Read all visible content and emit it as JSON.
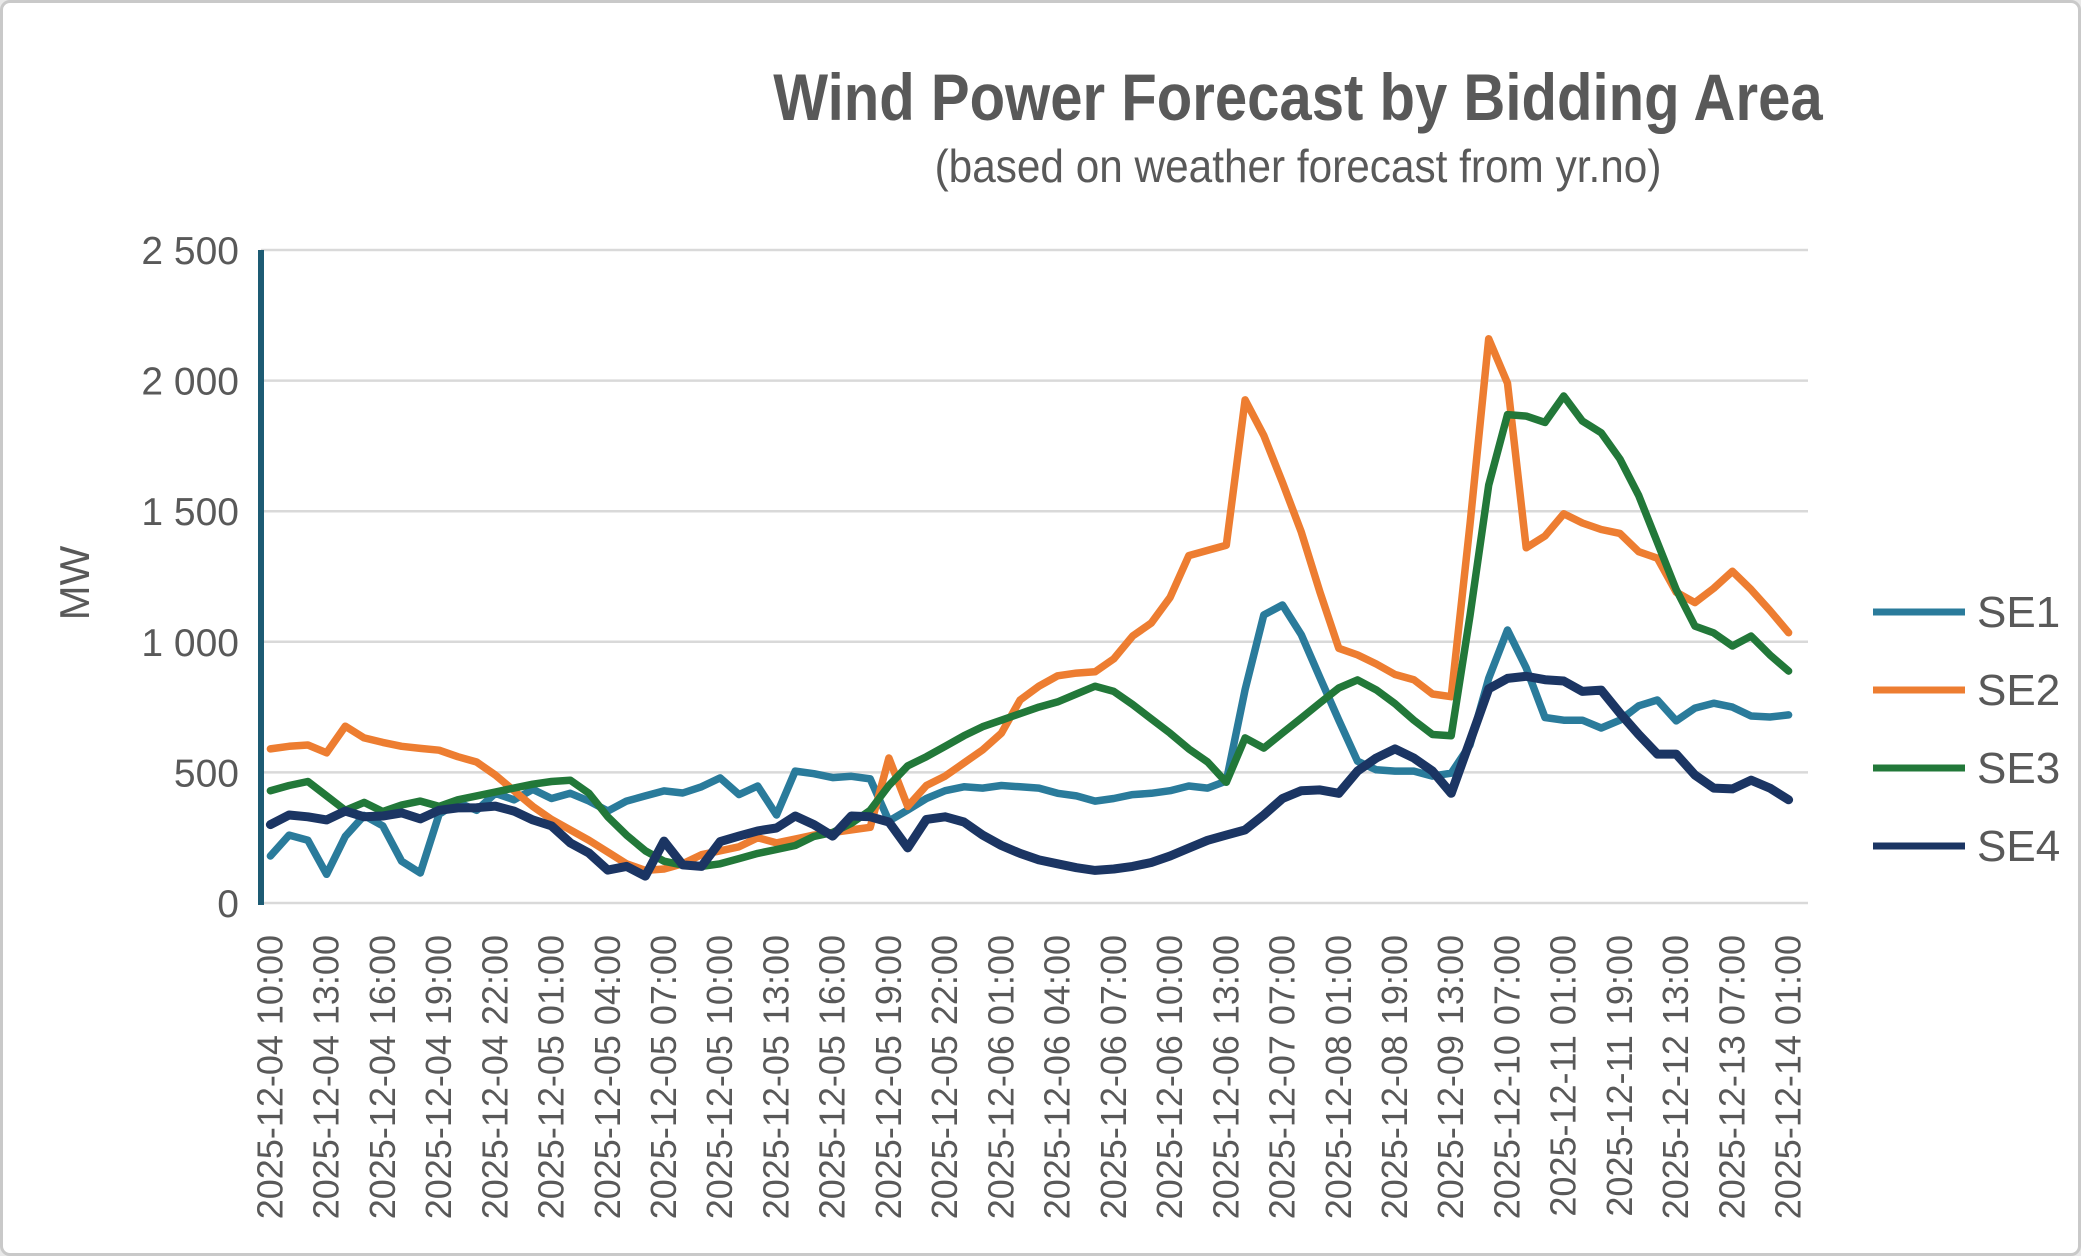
{
  "window": {
    "background": "#ffffff",
    "border_color": "#c9c9c9"
  },
  "chart_data": {
    "type": "line",
    "title": "Wind Power Forecast by Bidding Area",
    "subtitle": "(based on weather forecast from yr.no)",
    "ylabel": "MW",
    "xlabel": "",
    "ylim": [
      0,
      2500
    ],
    "ytick_step": 500,
    "ytick_labels": [
      "0",
      "500",
      "1 000",
      "1 500",
      "2 000",
      "2 500"
    ],
    "grid": true,
    "grid_color": "#d9d9d9",
    "axis_line_color": "#1d5b73",
    "text_color": "#595959",
    "legend_position": "right",
    "xtick_every": 3,
    "x": [
      "2025-12-04 10:00",
      "2025-12-04 11:00",
      "2025-12-04 12:00",
      "2025-12-04 13:00",
      "2025-12-04 14:00",
      "2025-12-04 15:00",
      "2025-12-04 16:00",
      "2025-12-04 17:00",
      "2025-12-04 18:00",
      "2025-12-04 19:00",
      "2025-12-04 20:00",
      "2025-12-04 21:00",
      "2025-12-04 22:00",
      "2025-12-04 23:00",
      "2025-12-05 00:00",
      "2025-12-05 01:00",
      "2025-12-05 02:00",
      "2025-12-05 03:00",
      "2025-12-05 04:00",
      "2025-12-05 05:00",
      "2025-12-05 06:00",
      "2025-12-05 07:00",
      "2025-12-05 08:00",
      "2025-12-05 09:00",
      "2025-12-05 10:00",
      "2025-12-05 11:00",
      "2025-12-05 12:00",
      "2025-12-05 13:00",
      "2025-12-05 14:00",
      "2025-12-05 15:00",
      "2025-12-05 16:00",
      "2025-12-05 17:00",
      "2025-12-05 18:00",
      "2025-12-05 19:00",
      "2025-12-05 20:00",
      "2025-12-05 21:00",
      "2025-12-05 22:00",
      "2025-12-05 23:00",
      "2025-12-06 00:00",
      "2025-12-06 01:00",
      "2025-12-06 02:00",
      "2025-12-06 03:00",
      "2025-12-06 04:00",
      "2025-12-06 05:00",
      "2025-12-06 06:00",
      "2025-12-06 07:00",
      "2025-12-06 08:00",
      "2025-12-06 09:00",
      "2025-12-06 10:00",
      "2025-12-06 11:00",
      "2025-12-06 12:00",
      "2025-12-06 13:00",
      "2025-12-06 19:00",
      "2025-12-07 01:00",
      "2025-12-07 07:00",
      "2025-12-07 13:00",
      "2025-12-07 19:00",
      "2025-12-08 01:00",
      "2025-12-08 07:00",
      "2025-12-08 13:00",
      "2025-12-08 19:00",
      "2025-12-09 01:00",
      "2025-12-09 07:00",
      "2025-12-09 13:00",
      "2025-12-09 19:00",
      "2025-12-10 01:00",
      "2025-12-10 07:00",
      "2025-12-10 13:00",
      "2025-12-10 19:00",
      "2025-12-11 01:00",
      "2025-12-11 07:00",
      "2025-12-11 13:00",
      "2025-12-11 19:00",
      "2025-12-12 01:00",
      "2025-12-12 07:00",
      "2025-12-12 13:00",
      "2025-12-12 19:00",
      "2025-12-13 01:00",
      "2025-12-13 07:00",
      "2025-12-13 13:00",
      "2025-12-13 19:00",
      "2025-12-14 01:00"
    ],
    "series": [
      {
        "name": "SE1",
        "color": "#2a7b9b",
        "values": [
          180,
          260,
          240,
          110,
          255,
          335,
          295,
          160,
          115,
          340,
          385,
          355,
          420,
          395,
          435,
          400,
          420,
          390,
          352,
          390,
          410,
          429,
          421,
          445,
          479,
          415,
          448,
          337,
          505,
          495,
          480,
          485,
          475,
          314,
          356,
          400,
          430,
          445,
          440,
          450,
          445,
          440,
          420,
          410,
          390,
          400,
          415,
          420,
          430,
          448,
          440,
          467,
          817,
          1103,
          1141,
          1027,
          862,
          700,
          543,
          510,
          505,
          505,
          486,
          497,
          605,
          860,
          1045,
          900,
          710,
          700,
          700,
          670,
          700,
          755,
          777,
          697,
          746,
          765,
          750,
          716,
          712,
          720
        ]
      },
      {
        "name": "SE2",
        "color": "#ed7d31",
        "values": [
          590,
          600,
          605,
          575,
          677,
          632,
          615,
          600,
          592,
          585,
          560,
          540,
          490,
          430,
          370,
          320,
          280,
          240,
          195,
          150,
          125,
          130,
          150,
          185,
          200,
          215,
          250,
          230,
          245,
          260,
          270,
          280,
          290,
          555,
          370,
          450,
          486,
          536,
          586,
          650,
          777,
          830,
          870,
          880,
          885,
          935,
          1022,
          1072,
          1170,
          1330,
          1350,
          1370,
          1926,
          1790,
          1610,
          1420,
          1190,
          975,
          950,
          915,
          875,
          855,
          800,
          790,
          1450,
          2160,
          1990,
          1360,
          1405,
          1490,
          1455,
          1430,
          1415,
          1345,
          1320,
          1190,
          1150,
          1205,
          1270,
          1200,
          1120,
          1035
        ]
      },
      {
        "name": "SE3",
        "color": "#227839",
        "values": [
          430,
          450,
          465,
          410,
          355,
          385,
          350,
          375,
          390,
          370,
          395,
          410,
          425,
          440,
          455,
          465,
          470,
          420,
          330,
          260,
          200,
          160,
          145,
          140,
          150,
          170,
          190,
          205,
          220,
          255,
          270,
          305,
          355,
          450,
          525,
          560,
          600,
          640,
          675,
          700,
          725,
          750,
          770,
          800,
          830,
          810,
          760,
          705,
          650,
          590,
          540,
          462,
          632,
          593,
          651,
          708,
          766,
          823,
          854,
          816,
          763,
          700,
          645,
          640,
          1100,
          1600,
          1870,
          1864,
          1840,
          1941,
          1845,
          1800,
          1700,
          1560,
          1380,
          1200,
          1060,
          1034,
          984,
          1022,
          950,
          888
        ]
      },
      {
        "name": "SE4",
        "color": "#1b3563",
        "values": [
          300,
          337,
          330,
          318,
          352,
          330,
          333,
          345,
          322,
          355,
          364,
          365,
          371,
          352,
          318,
          295,
          230,
          191,
          126,
          140,
          103,
          237,
          146,
          140,
          235,
          256,
          276,
          287,
          333,
          300,
          256,
          333,
          330,
          310,
          211,
          320,
          330,
          310,
          260,
          220,
          190,
          165,
          150,
          135,
          125,
          130,
          140,
          155,
          180,
          210,
          240,
          260,
          280,
          337,
          400,
          430,
          433,
          420,
          505,
          555,
          590,
          555,
          505,
          420,
          620,
          820,
          860,
          868,
          855,
          850,
          810,
          815,
          727,
          645,
          570,
          570,
          490,
          440,
          437,
          470,
          440,
          395
        ]
      }
    ]
  }
}
